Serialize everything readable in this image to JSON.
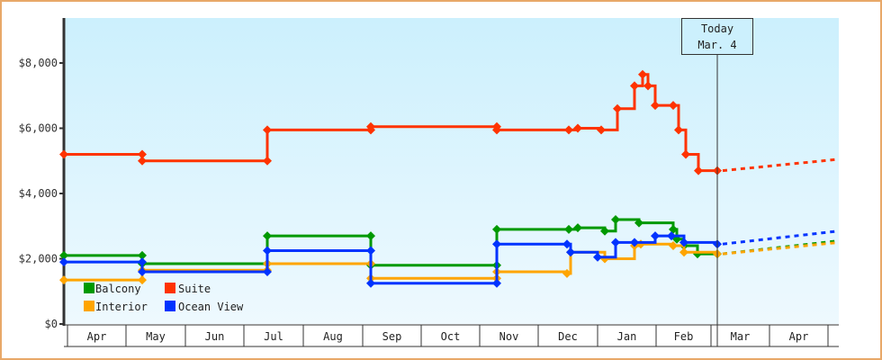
{
  "chart_data": {
    "type": "line",
    "title": "",
    "xlabel": "",
    "ylabel": "",
    "ylim": [
      0,
      9000
    ],
    "y_ticks": [
      "$0",
      "$2,000",
      "$4,000",
      "$6,000",
      "$8,000"
    ],
    "y_tick_values": [
      0,
      2000,
      4000,
      6000,
      8000
    ],
    "categories": [
      "Apr",
      "May",
      "Jun",
      "Jul",
      "Aug",
      "Sep",
      "Oct",
      "Nov",
      "Dec",
      "Jan",
      "Feb",
      "Mar",
      "Apr"
    ],
    "grid": false,
    "legend_position": "lower-left inside",
    "today_marker": {
      "line1": "Today",
      "line2": "Mar. 4"
    },
    "series": [
      {
        "name": "Balcony",
        "color": "#009900",
        "points": [
          [
            "Apr",
            2100
          ],
          [
            "May",
            2100
          ],
          [
            "May",
            1850
          ],
          [
            "Jul",
            1850
          ],
          [
            "Jul",
            2700
          ],
          [
            "Sep",
            2700
          ],
          [
            "Sep",
            1800
          ],
          [
            "Nov",
            1800
          ],
          [
            "Nov",
            2900
          ],
          [
            "Dec",
            2900
          ],
          [
            "Dec",
            2950
          ],
          [
            "Dec",
            2850
          ],
          [
            "Jan",
            3200
          ],
          [
            "Jan",
            3100
          ],
          [
            "Feb",
            2900
          ],
          [
            "Feb",
            2600
          ],
          [
            "Feb",
            2400
          ],
          [
            "Feb",
            2150
          ],
          [
            "Mar",
            2150
          ]
        ],
        "forecast": [
          [
            "Mar",
            2150
          ],
          [
            "Apr+",
            2550
          ]
        ]
      },
      {
        "name": "Suite",
        "color": "#ff3300",
        "points": [
          [
            "Apr",
            5200
          ],
          [
            "May",
            5200
          ],
          [
            "May",
            5000
          ],
          [
            "Jul",
            5000
          ],
          [
            "Jul",
            5950
          ],
          [
            "Sep",
            5950
          ],
          [
            "Sep",
            6050
          ],
          [
            "Nov",
            6050
          ],
          [
            "Nov",
            5950
          ],
          [
            "Dec",
            5950
          ],
          [
            "Dec",
            6000
          ],
          [
            "Dec",
            5950
          ],
          [
            "Jan",
            6600
          ],
          [
            "Jan",
            7300
          ],
          [
            "Jan",
            7650
          ],
          [
            "Jan",
            7300
          ],
          [
            "Jan",
            6700
          ],
          [
            "Feb",
            6700
          ],
          [
            "Feb",
            5950
          ],
          [
            "Feb",
            5200
          ],
          [
            "Feb",
            4700
          ],
          [
            "Mar",
            4700
          ]
        ],
        "forecast": [
          [
            "Mar",
            4700
          ],
          [
            "Apr+",
            5050
          ]
        ]
      },
      {
        "name": "Interior",
        "color": "#ffa500",
        "points": [
          [
            "Apr",
            1350
          ],
          [
            "May",
            1350
          ],
          [
            "May",
            1650
          ],
          [
            "Jul",
            1650
          ],
          [
            "Jul",
            1850
          ],
          [
            "Sep",
            1850
          ],
          [
            "Sep",
            1400
          ],
          [
            "Nov",
            1400
          ],
          [
            "Nov",
            1600
          ],
          [
            "Dec",
            1550
          ],
          [
            "Dec",
            2200
          ],
          [
            "Dec",
            2000
          ],
          [
            "Jan",
            2400
          ],
          [
            "Jan",
            2450
          ],
          [
            "Feb",
            2400
          ],
          [
            "Feb",
            2200
          ],
          [
            "Mar",
            2150
          ]
        ],
        "forecast": [
          [
            "Mar",
            2150
          ],
          [
            "Apr+",
            2500
          ]
        ]
      },
      {
        "name": "Ocean View",
        "color": "#0033ff",
        "points": [
          [
            "Apr",
            1900
          ],
          [
            "May",
            1900
          ],
          [
            "May",
            1600
          ],
          [
            "Jul",
            1600
          ],
          [
            "Jul",
            2250
          ],
          [
            "Sep",
            2250
          ],
          [
            "Sep",
            1250
          ],
          [
            "Nov",
            1250
          ],
          [
            "Nov",
            2450
          ],
          [
            "Dec",
            2450
          ],
          [
            "Dec",
            2200
          ],
          [
            "Dec",
            2050
          ],
          [
            "Jan",
            2500
          ],
          [
            "Jan",
            2500
          ],
          [
            "Jan",
            2700
          ],
          [
            "Feb",
            2700
          ],
          [
            "Feb",
            2500
          ],
          [
            "Mar",
            2450
          ]
        ],
        "forecast": [
          [
            "Mar",
            2450
          ],
          [
            "Apr+",
            2850
          ]
        ]
      }
    ]
  },
  "legend": {
    "items": [
      {
        "label": "Balcony",
        "color": "#009900"
      },
      {
        "label": "Suite",
        "color": "#ff3300"
      },
      {
        "label": "Interior",
        "color": "#ffa500"
      },
      {
        "label": "Ocean View",
        "color": "#0033ff"
      }
    ]
  },
  "axis": {
    "y": [
      "$0",
      "$2,000",
      "$4,000",
      "$6,000",
      "$8,000"
    ],
    "x": [
      "Apr",
      "May",
      "Jun",
      "Jul",
      "Aug",
      "Sep",
      "Oct",
      "Nov",
      "Dec",
      "Jan",
      "Feb",
      "Mar",
      "Apr"
    ]
  },
  "today": {
    "line1": "Today",
    "line2": "Mar. 4"
  }
}
